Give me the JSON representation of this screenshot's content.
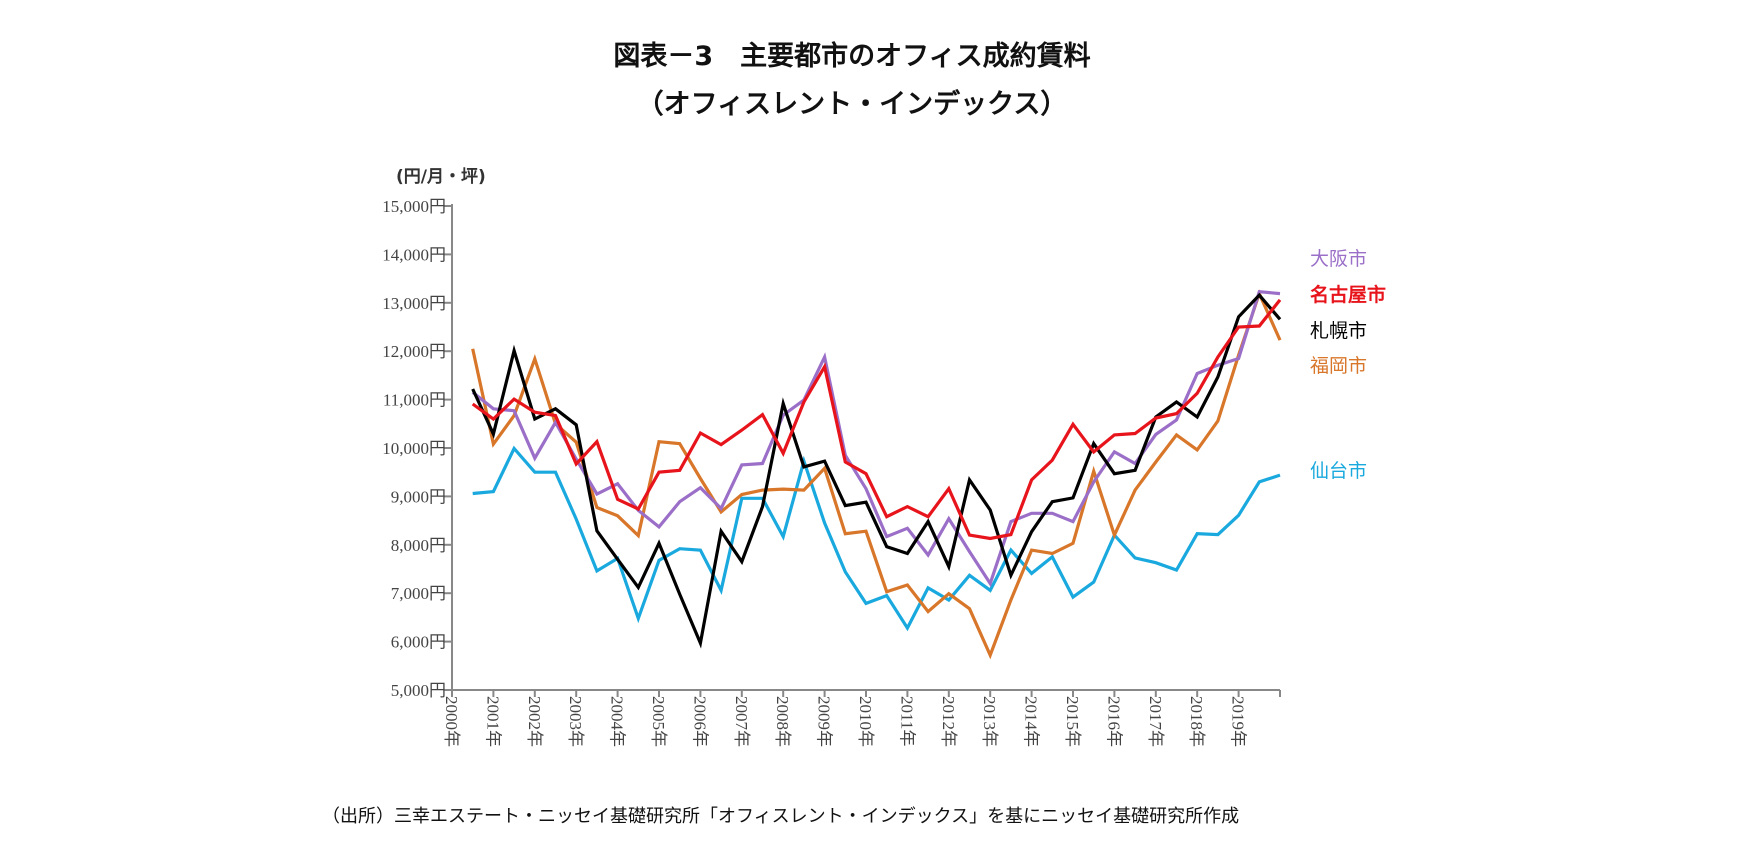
{
  "title": {
    "line1": "図表－3　主要都市のオフィス成約賃料",
    "line2": "（オフィスレント・インデックス）"
  },
  "source": "（出所）三幸エステート・ニッセイ基礎研究所「オフィスレント・インデックス」を基にニッセイ基礎研究所作成",
  "chart_data": {
    "type": "line",
    "title": "主要都市のオフィス成約賃料（オフィスレント・インデックス）",
    "ylabel": "(円/月・坪)",
    "xlabel": "",
    "ylim": [
      5000,
      15000
    ],
    "xlim": [
      2000,
      2020
    ],
    "grid": false,
    "legend": "right, inline labels",
    "y_ticks": [
      "5,000円",
      "6,000円",
      "7,000円",
      "8,000円",
      "9,000円",
      "10,000円",
      "11,000円",
      "12,000円",
      "13,000円",
      "14,000円",
      "15,000円"
    ],
    "x_ticks": [
      "2000年",
      "2001年",
      "2002年",
      "2003年",
      "2004年",
      "2005年",
      "2006年",
      "2007年",
      "2008年",
      "2009年",
      "2010年",
      "2011年",
      "2012年",
      "2013年",
      "2014年",
      "2015年",
      "2016年",
      "2017年",
      "2018年",
      "2019年"
    ],
    "x": [
      2000.5,
      2001,
      2001.5,
      2002,
      2002.5,
      2003,
      2003.5,
      2004,
      2004.5,
      2005,
      2005.5,
      2006,
      2006.5,
      2007,
      2007.5,
      2008,
      2008.5,
      2009,
      2009.5,
      2010,
      2010.5,
      2011,
      2011.5,
      2012,
      2012.5,
      2013,
      2013.5,
      2014,
      2014.5,
      2015,
      2015.5,
      2016,
      2016.5,
      2017,
      2017.5,
      2018,
      2018.5,
      2019,
      2019.5,
      2020
    ],
    "series": [
      {
        "name": "大阪市",
        "color": "#9b6fc8",
        "values": [
          11150,
          10810,
          10770,
          9790,
          10530,
          9770,
          9050,
          9260,
          8710,
          8370,
          8890,
          9180,
          8750,
          9650,
          9680,
          10680,
          10990,
          11880,
          9850,
          9160,
          8170,
          8340,
          7790,
          8540,
          7860,
          7200,
          8480,
          8650,
          8650,
          8480,
          9300,
          9920,
          9680,
          10280,
          10580,
          11540,
          11710,
          11850,
          13230,
          13190
        ]
      },
      {
        "name": "名古屋市",
        "color": "#e8141c",
        "values": [
          10910,
          10600,
          11010,
          10740,
          10670,
          9670,
          10130,
          8940,
          8740,
          9500,
          9540,
          10310,
          10070,
          10370,
          10690,
          9890,
          10950,
          11680,
          9710,
          9470,
          8580,
          8790,
          8580,
          9160,
          8200,
          8130,
          8210,
          9340,
          9750,
          10490,
          9920,
          10270,
          10300,
          10620,
          10710,
          11130,
          11880,
          12500,
          12520,
          13060
        ]
      },
      {
        "name": "札幌市",
        "color": "#000000",
        "values": [
          11220,
          10290,
          12010,
          10600,
          10810,
          10480,
          8290,
          7700,
          7120,
          8030,
          6980,
          5970,
          8280,
          7650,
          8790,
          10920,
          9610,
          9730,
          8810,
          8880,
          7960,
          7820,
          8480,
          7550,
          9340,
          8720,
          7370,
          8270,
          8890,
          8970,
          10090,
          9470,
          9540,
          10640,
          10950,
          10640,
          11470,
          12710,
          13160,
          12660
        ]
      },
      {
        "name": "福岡市",
        "color": "#d8762a",
        "values": [
          12050,
          10080,
          10670,
          11840,
          10500,
          10120,
          8770,
          8600,
          8190,
          10130,
          10090,
          9370,
          8680,
          9040,
          9130,
          9150,
          9130,
          9580,
          8230,
          8280,
          7030,
          7170,
          6620,
          6990,
          6680,
          5720,
          6860,
          7890,
          7820,
          8030,
          9520,
          8200,
          9130,
          9710,
          10270,
          9960,
          10560,
          11920,
          13190,
          12230
        ]
      },
      {
        "name": "仙台市",
        "color": "#1aa9de",
        "values": [
          9060,
          9100,
          9990,
          9500,
          9500,
          8530,
          7460,
          7720,
          6480,
          7680,
          7920,
          7890,
          7060,
          8960,
          8960,
          8170,
          9730,
          8450,
          7440,
          6790,
          6950,
          6280,
          7110,
          6860,
          7370,
          7060,
          7890,
          7410,
          7750,
          6920,
          7230,
          8200,
          7730,
          7630,
          7480,
          8230,
          8210,
          8610,
          9300,
          9440
        ]
      }
    ]
  }
}
